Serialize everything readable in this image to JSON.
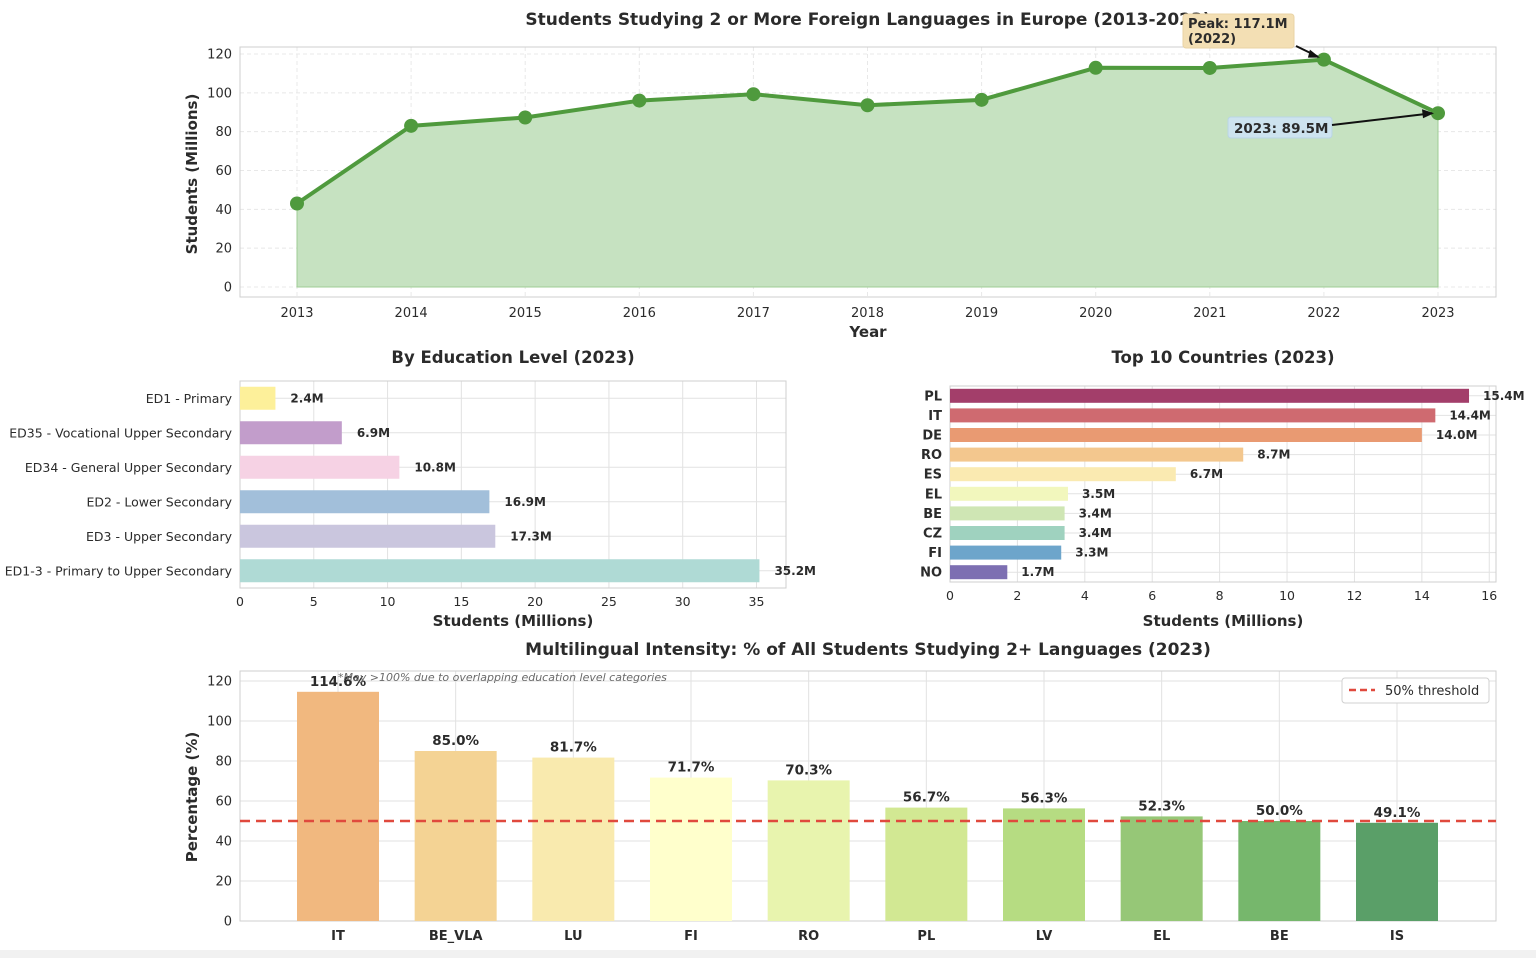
{
  "chart_data": [
    {
      "type": "area",
      "title": "Students Studying 2 or More Foreign Languages in Europe (2013-2023)",
      "xlabel": "Year",
      "ylabel": "Students (Millions)",
      "x": [
        "2013",
        "2014",
        "2015",
        "2016",
        "2017",
        "2018",
        "2019",
        "2020",
        "2021",
        "2022",
        "2023"
      ],
      "values": [
        43.0,
        83.0,
        87.3,
        96.0,
        99.3,
        93.6,
        96.4,
        112.9,
        112.8,
        117.1,
        89.5
      ],
      "ylim": [
        0,
        120
      ],
      "yticks": [
        "0",
        "20",
        "40",
        "60",
        "80",
        "100",
        "120"
      ],
      "grid": true,
      "color": "#4f9a3d",
      "fill_color": "#c6e2c1",
      "annotations": [
        {
          "text_line1": "Peak: 117.1M",
          "text_line2": "(2022)",
          "target": "2022"
        },
        {
          "text_line1": "2023: 89.5M",
          "target": "2023"
        }
      ]
    },
    {
      "type": "bar",
      "orientation": "horizontal",
      "title": "By Education Level (2023)",
      "xlabel": "Students (Millions)",
      "categories": [
        "ED1 - Primary",
        "ED35 - Vocational Upper Secondary",
        "ED34 - General Upper Secondary",
        "ED2 - Lower Secondary",
        "ED3 - Upper Secondary",
        "ED1-3 - Primary to Upper Secondary"
      ],
      "values": [
        2.4,
        6.9,
        10.8,
        16.9,
        17.3,
        35.2
      ],
      "labels": [
        "2.4M",
        "6.9M",
        "10.8M",
        "16.9M",
        "17.3M",
        "35.2M"
      ],
      "colors": [
        "#fdf09a",
        "#c29dcb",
        "#f6d2e4",
        "#a2bfda",
        "#cac6de",
        "#afdad5"
      ],
      "xlim": [
        0,
        37
      ],
      "xticks": [
        "0",
        "5",
        "10",
        "15",
        "20",
        "25",
        "30",
        "35"
      ],
      "grid": true
    },
    {
      "type": "bar",
      "orientation": "horizontal",
      "title": "Top 10 Countries (2023)",
      "xlabel": "Students (Millions)",
      "categories": [
        "PL",
        "IT",
        "DE",
        "RO",
        "ES",
        "EL",
        "BE",
        "CZ",
        "FI",
        "NO"
      ],
      "values": [
        15.4,
        14.4,
        14.0,
        8.7,
        6.7,
        3.5,
        3.4,
        3.4,
        3.3,
        1.7
      ],
      "labels": [
        "15.4M",
        "14.4M",
        "14.0M",
        "8.7M",
        "6.7M",
        "3.5M",
        "3.4M",
        "3.4M",
        "3.3M",
        "1.7M"
      ],
      "colors": [
        "#a33e6a",
        "#cf6a70",
        "#e99a72",
        "#f3c78e",
        "#faeab1",
        "#f2f7bd",
        "#cfe6b4",
        "#9fd2bf",
        "#6da5cb",
        "#7d6fb2"
      ],
      "xlim": [
        0,
        16.2
      ],
      "xticks": [
        "0",
        "2",
        "4",
        "6",
        "8",
        "10",
        "12",
        "14",
        "16"
      ],
      "grid": true
    },
    {
      "type": "bar",
      "title": "Multilingual Intensity: % of All Students Studying 2+ Languages (2023)",
      "ylabel": "Percentage (%)",
      "categories": [
        "IT",
        "BE_VLA",
        "LU",
        "FI",
        "RO",
        "PL",
        "LV",
        "EL",
        "BE",
        "IS"
      ],
      "values": [
        114.6,
        85.0,
        81.7,
        71.7,
        70.3,
        56.7,
        56.3,
        52.3,
        50.0,
        49.1
      ],
      "labels": [
        "114.6%",
        "85.0%",
        "81.7%",
        "71.7%",
        "70.3%",
        "56.7%",
        "56.3%",
        "52.3%",
        "50.0%",
        "49.1%"
      ],
      "colors": [
        "#f1b87f",
        "#f4d394",
        "#f9eaae",
        "#ffffcc",
        "#e8f4ae",
        "#d2e893",
        "#b6dc82",
        "#96c777",
        "#76b76c",
        "#5a9f68"
      ],
      "ylim": [
        0,
        125
      ],
      "yticks": [
        "0",
        "20",
        "40",
        "60",
        "80",
        "100",
        "120"
      ],
      "threshold": 50,
      "legend": {
        "label": "50% threshold",
        "placement": "top-right"
      },
      "note": "*May >100% due to overlapping education level categories",
      "grid": true
    }
  ]
}
